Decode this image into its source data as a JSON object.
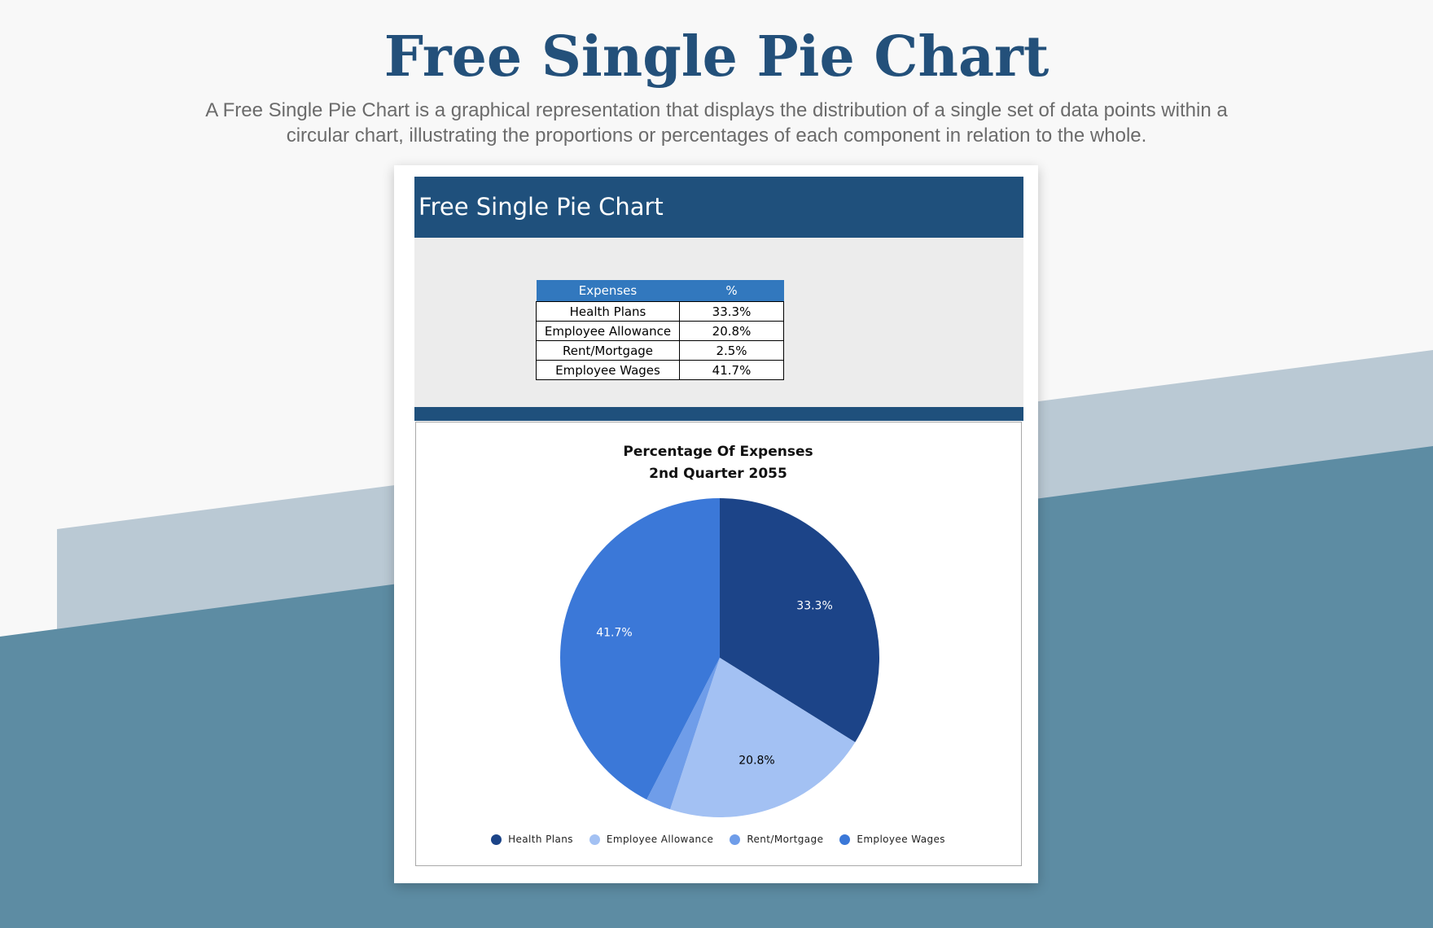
{
  "page": {
    "title": "Free Single Pie Chart",
    "description": "A Free Single Pie Chart is a graphical representation that displays the distribution of a single set of data points within a circular chart, illustrating the proportions or percentages of each component in relation to the whole."
  },
  "sheet": {
    "header_title": "Free Single Pie Chart",
    "table": {
      "headers": [
        "Expenses",
        "%"
      ],
      "rows": [
        [
          "Health Plans",
          "33.3%"
        ],
        [
          "Employee Allowance",
          "20.8%"
        ],
        [
          "Rent/Mortgage",
          "2.5%"
        ],
        [
          "Employee Wages",
          "41.7%"
        ]
      ]
    }
  },
  "colors": {
    "brand_dark": "#1f507c",
    "table_header": "#3278be",
    "bg_light_band": "#bac9d4",
    "bg_dark_band": "#5d8ca3"
  },
  "chart_data": {
    "type": "pie",
    "title": "Percentage Of Expenses",
    "subtitle": "2nd Quarter 2055",
    "categories": [
      "Health Plans",
      "Employee Allowance",
      "Rent/Mortgage",
      "Employee Wages"
    ],
    "values": [
      33.3,
      20.8,
      2.5,
      41.7
    ],
    "data_labels": [
      "33.3%",
      "20.8%",
      "",
      "41.7%"
    ],
    "colors": [
      "#1c4488",
      "#a3c1f3",
      "#6f9de9",
      "#3b78d8"
    ],
    "label_colors": [
      "#ffffff",
      "#000000",
      "#ffffff",
      "#ffffff"
    ],
    "start": "12 o'clock",
    "direction": "clockwise",
    "legend": "bottom"
  }
}
